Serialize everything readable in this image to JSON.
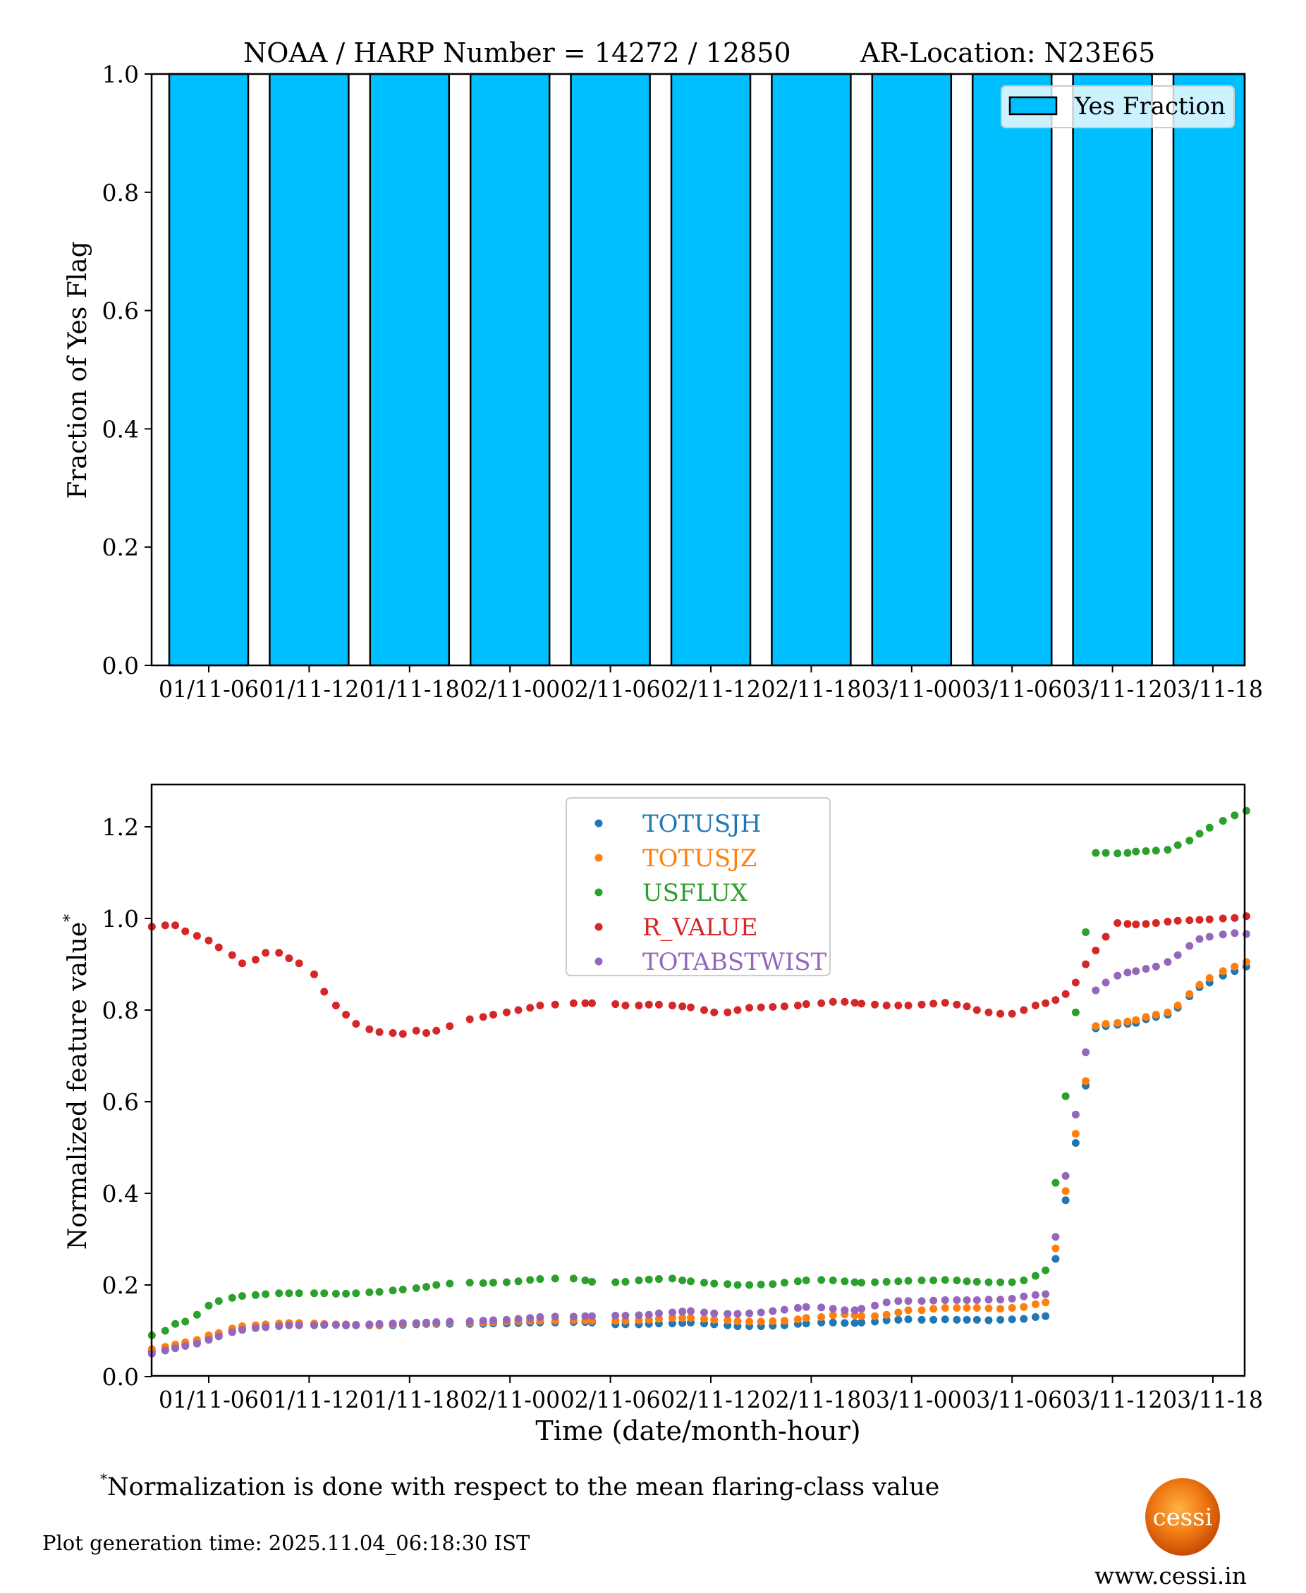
{
  "chart_data": [
    {
      "type": "bar",
      "title": "NOAA / HARP Number = 14272 / 12850       AR-Location: N23E65",
      "title_parts": {
        "left": "NOAA / HARP Number = 14272 / 12850",
        "right": "AR-Location: N23E65"
      },
      "xlabel": "",
      "ylabel": "Fraction of Yes Flag",
      "categories": [
        "01/11-06",
        "01/11-12",
        "01/11-18",
        "02/11-00",
        "02/11-06",
        "02/11-12",
        "02/11-18",
        "03/11-00",
        "03/11-06",
        "03/11-12",
        "03/11-18"
      ],
      "values": [
        1.0,
        1.0,
        1.0,
        1.0,
        1.0,
        1.0,
        1.0,
        1.0,
        1.0,
        1.0,
        1.0
      ],
      "ylim": [
        0.0,
        1.0
      ],
      "yticks": [
        "0.0",
        "0.2",
        "0.4",
        "0.6",
        "0.8",
        "1.0"
      ],
      "legend": {
        "entries": [
          "Yes Fraction"
        ],
        "placement": "top-right"
      },
      "bar_color": "#00bfff",
      "grid": false
    },
    {
      "type": "scatter",
      "title": "",
      "xlabel": "Time (date/month-hour)",
      "ylabel": "Normalized feature value",
      "ylabel_sup": "*",
      "x_units": "hours since 01/11-00",
      "xlim": [
        2.6,
        68.0
      ],
      "ylim": [
        -0.02,
        1.3
      ],
      "xticks": [
        {
          "value": 6,
          "label": "01/11-06"
        },
        {
          "value": 12,
          "label": "01/11-12"
        },
        {
          "value": 18,
          "label": "01/11-18"
        },
        {
          "value": 24,
          "label": "02/11-00"
        },
        {
          "value": 30,
          "label": "02/11-06"
        },
        {
          "value": 36,
          "label": "02/11-12"
        },
        {
          "value": 42,
          "label": "02/11-18"
        },
        {
          "value": 48,
          "label": "03/11-00"
        },
        {
          "value": 54,
          "label": "03/11-06"
        },
        {
          "value": 60,
          "label": "03/11-12"
        },
        {
          "value": 66,
          "label": "03/11-18"
        }
      ],
      "yticks": [
        "0.0",
        "0.2",
        "0.4",
        "0.6",
        "0.8",
        "1.0",
        "1.2"
      ],
      "legend": {
        "placement": "upper-center"
      },
      "grid": false,
      "x": [
        2.6,
        3.4,
        4.0,
        4.6,
        5.3,
        6.0,
        6.6,
        7.4,
        8.0,
        8.8,
        9.4,
        10.2,
        10.8,
        11.4,
        12.3,
        12.9,
        13.6,
        14.2,
        14.8,
        15.6,
        16.2,
        17.0,
        17.6,
        18.4,
        19.0,
        19.6,
        20.4,
        21.6,
        22.4,
        23.0,
        23.8,
        24.5,
        25.2,
        25.8,
        26.7,
        27.8,
        28.5,
        28.9,
        30.3,
        30.9,
        31.7,
        32.3,
        32.9,
        33.7,
        34.3,
        34.8,
        35.6,
        36.2,
        37.0,
        37.6,
        38.3,
        39.0,
        39.7,
        40.4,
        41.2,
        41.7,
        42.6,
        43.3,
        44.0,
        44.6,
        45.0,
        45.8,
        46.5,
        47.2,
        47.8,
        48.6,
        49.3,
        50.0,
        50.7,
        51.3,
        51.9,
        52.6,
        53.3,
        54.0,
        54.7,
        55.4,
        56.0,
        56.6,
        57.2,
        57.8,
        58.4,
        59.0,
        59.6,
        60.3,
        60.9,
        61.4,
        62.0,
        62.6,
        63.3,
        63.9,
        64.6,
        65.2,
        65.8,
        66.6,
        67.3,
        68.0
      ],
      "series": [
        {
          "name": "TOTUSJH",
          "color": "#1f77b4",
          "values": [
            0.055,
            0.06,
            0.065,
            0.07,
            0.075,
            0.085,
            0.09,
            0.1,
            0.105,
            0.108,
            0.11,
            0.112,
            0.113,
            0.113,
            0.113,
            0.113,
            0.113,
            0.112,
            0.112,
            0.112,
            0.112,
            0.112,
            0.113,
            0.114,
            0.115,
            0.115,
            0.115,
            0.115,
            0.115,
            0.116,
            0.116,
            0.117,
            0.118,
            0.118,
            0.118,
            0.119,
            0.119,
            0.118,
            0.114,
            0.114,
            0.114,
            0.115,
            0.116,
            0.116,
            0.117,
            0.118,
            0.116,
            0.114,
            0.112,
            0.11,
            0.11,
            0.11,
            0.111,
            0.112,
            0.115,
            0.116,
            0.118,
            0.118,
            0.117,
            0.117,
            0.118,
            0.12,
            0.123,
            0.124,
            0.125,
            0.124,
            0.124,
            0.125,
            0.124,
            0.124,
            0.124,
            0.123,
            0.124,
            0.125,
            0.126,
            0.13,
            0.132,
            0.257,
            0.385,
            0.51,
            0.635,
            0.76,
            0.765,
            0.768,
            0.77,
            0.772,
            0.78,
            0.785,
            0.79,
            0.805,
            0.83,
            0.85,
            0.86,
            0.875,
            0.885,
            0.895
          ]
        },
        {
          "name": "TOTUSJZ",
          "color": "#ff7f0e",
          "values": [
            0.06,
            0.065,
            0.07,
            0.075,
            0.08,
            0.09,
            0.095,
            0.105,
            0.11,
            0.112,
            0.114,
            0.116,
            0.117,
            0.117,
            0.116,
            0.115,
            0.114,
            0.114,
            0.113,
            0.113,
            0.113,
            0.114,
            0.115,
            0.116,
            0.117,
            0.117,
            0.118,
            0.118,
            0.118,
            0.119,
            0.12,
            0.121,
            0.122,
            0.122,
            0.122,
            0.123,
            0.123,
            0.122,
            0.122,
            0.122,
            0.123,
            0.124,
            0.126,
            0.128,
            0.128,
            0.128,
            0.126,
            0.124,
            0.123,
            0.121,
            0.12,
            0.12,
            0.121,
            0.122,
            0.125,
            0.128,
            0.13,
            0.134,
            0.136,
            0.134,
            0.132,
            0.132,
            0.135,
            0.14,
            0.145,
            0.145,
            0.148,
            0.15,
            0.15,
            0.15,
            0.15,
            0.149,
            0.148,
            0.15,
            0.152,
            0.158,
            0.162,
            0.28,
            0.405,
            0.53,
            0.645,
            0.765,
            0.77,
            0.772,
            0.775,
            0.778,
            0.785,
            0.79,
            0.795,
            0.81,
            0.835,
            0.855,
            0.87,
            0.885,
            0.895,
            0.905
          ]
        },
        {
          "name": "USFLUX",
          "color": "#2ca02c",
          "values": [
            0.09,
            0.1,
            0.115,
            0.12,
            0.135,
            0.155,
            0.165,
            0.172,
            0.176,
            0.178,
            0.18,
            0.182,
            0.182,
            0.182,
            0.182,
            0.182,
            0.181,
            0.181,
            0.182,
            0.184,
            0.185,
            0.188,
            0.19,
            0.193,
            0.196,
            0.2,
            0.203,
            0.205,
            0.204,
            0.205,
            0.206,
            0.208,
            0.211,
            0.213,
            0.214,
            0.214,
            0.21,
            0.207,
            0.206,
            0.207,
            0.21,
            0.212,
            0.213,
            0.214,
            0.21,
            0.208,
            0.205,
            0.203,
            0.202,
            0.2,
            0.2,
            0.201,
            0.202,
            0.205,
            0.208,
            0.21,
            0.211,
            0.21,
            0.208,
            0.206,
            0.205,
            0.206,
            0.207,
            0.208,
            0.209,
            0.21,
            0.21,
            0.211,
            0.21,
            0.208,
            0.207,
            0.206,
            0.206,
            0.206,
            0.21,
            0.22,
            0.232,
            0.423,
            0.612,
            0.795,
            0.97,
            1.143,
            1.143,
            1.142,
            1.143,
            1.146,
            1.147,
            1.148,
            1.15,
            1.16,
            1.17,
            1.185,
            1.198,
            1.213,
            1.225,
            1.235
          ]
        },
        {
          "name": "R_VALUE",
          "color": "#d62728",
          "values": [
            0.982,
            0.985,
            0.985,
            0.972,
            0.962,
            0.952,
            0.937,
            0.92,
            0.902,
            0.91,
            0.925,
            0.925,
            0.913,
            0.902,
            0.878,
            0.84,
            0.81,
            0.79,
            0.77,
            0.758,
            0.752,
            0.75,
            0.748,
            0.755,
            0.75,
            0.755,
            0.765,
            0.78,
            0.785,
            0.79,
            0.795,
            0.8,
            0.805,
            0.81,
            0.812,
            0.815,
            0.815,
            0.815,
            0.813,
            0.81,
            0.81,
            0.812,
            0.812,
            0.81,
            0.808,
            0.806,
            0.8,
            0.795,
            0.795,
            0.8,
            0.805,
            0.806,
            0.807,
            0.808,
            0.81,
            0.813,
            0.815,
            0.818,
            0.818,
            0.816,
            0.814,
            0.812,
            0.81,
            0.81,
            0.81,
            0.812,
            0.814,
            0.816,
            0.812,
            0.808,
            0.8,
            0.795,
            0.792,
            0.792,
            0.8,
            0.81,
            0.815,
            0.822,
            0.835,
            0.86,
            0.9,
            0.93,
            0.96,
            0.99,
            0.988,
            0.987,
            0.988,
            0.99,
            0.993,
            0.995,
            0.996,
            0.997,
            0.998,
            1.0,
            1.001,
            1.005
          ]
        },
        {
          "name": "TOTABSTWIST",
          "color": "#9467bd",
          "values": [
            0.05,
            0.057,
            0.062,
            0.067,
            0.072,
            0.08,
            0.088,
            0.097,
            0.102,
            0.106,
            0.108,
            0.11,
            0.112,
            0.112,
            0.112,
            0.113,
            0.113,
            0.113,
            0.113,
            0.114,
            0.115,
            0.116,
            0.117,
            0.117,
            0.118,
            0.119,
            0.12,
            0.121,
            0.122,
            0.123,
            0.124,
            0.126,
            0.128,
            0.13,
            0.131,
            0.131,
            0.132,
            0.132,
            0.133,
            0.133,
            0.134,
            0.135,
            0.138,
            0.14,
            0.142,
            0.143,
            0.14,
            0.138,
            0.137,
            0.137,
            0.138,
            0.14,
            0.143,
            0.146,
            0.15,
            0.152,
            0.151,
            0.148,
            0.145,
            0.145,
            0.148,
            0.155,
            0.162,
            0.165,
            0.165,
            0.165,
            0.166,
            0.167,
            0.167,
            0.167,
            0.167,
            0.168,
            0.168,
            0.17,
            0.175,
            0.178,
            0.18,
            0.305,
            0.438,
            0.572,
            0.708,
            0.843,
            0.86,
            0.875,
            0.882,
            0.885,
            0.89,
            0.895,
            0.905,
            0.92,
            0.94,
            0.955,
            0.96,
            0.965,
            0.968,
            0.966
          ]
        }
      ]
    }
  ],
  "footer": {
    "footnote_mark": "*",
    "footnote": "Normalization is done with respect to the mean flaring-class value",
    "generation_time": "Plot generation time: 2025.11.04_06:18:30 IST",
    "logo_text": "cessi",
    "url": "www.cessi.in"
  }
}
